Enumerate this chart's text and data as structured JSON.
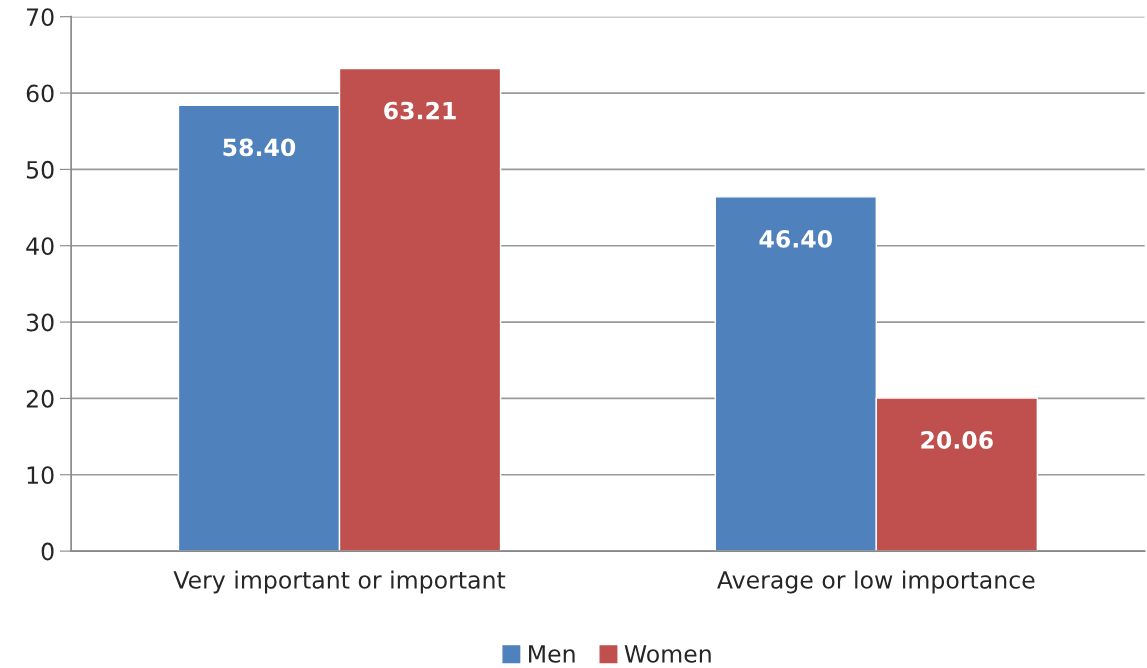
{
  "chart_data": {
    "type": "bar",
    "categories": [
      "Very important or important",
      "Average or low importance"
    ],
    "series": [
      {
        "name": "Men",
        "color": "#4f81bd",
        "values": [
          58.4,
          46.4
        ],
        "value_labels": [
          "58.40",
          "46.40"
        ]
      },
      {
        "name": "Women",
        "color": "#c0504d",
        "values": [
          63.21,
          20.06
        ],
        "value_labels": [
          "63.21",
          "20.06"
        ]
      }
    ],
    "ylim": [
      0,
      70
    ],
    "yticks": [
      0,
      10,
      20,
      30,
      40,
      50,
      60,
      70
    ],
    "grid": "y",
    "legend": "bottom"
  }
}
